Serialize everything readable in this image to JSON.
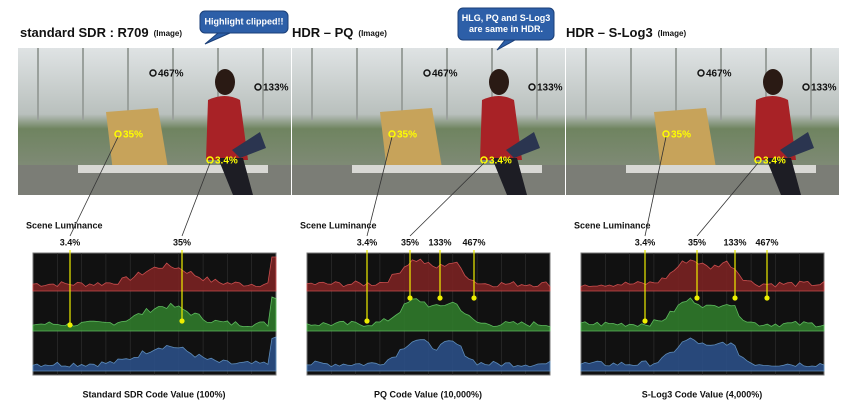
{
  "callouts": [
    {
      "lines": [
        "Highlight clipped!!"
      ]
    },
    {
      "lines": [
        "HLG, PQ and S-Log3",
        "are same in HDR."
      ]
    }
  ],
  "panels": [
    {
      "title": "standard SDR : R709",
      "title_note": "(Image)",
      "image_labels": [
        "467%",
        "133%",
        "35%",
        "3.4%"
      ],
      "scene_label": "Scene Luminance",
      "marker_labels": [
        "3.4%",
        "35%"
      ],
      "caption": "Standard  SDR Code Value (100%)"
    },
    {
      "title": "HDR – PQ",
      "title_note": "(Image)",
      "image_labels": [
        "467%",
        "133%",
        "35%",
        "3.4%"
      ],
      "scene_label": "Scene Luminance",
      "marker_labels": [
        "3.4%",
        "35%",
        "133%",
        "467%"
      ],
      "caption": "PQ Code Value (10,000%)"
    },
    {
      "title": "HDR – S-Log3",
      "title_note": "(Image)",
      "image_labels": [
        "467%",
        "133%",
        "35%",
        "3.4%"
      ],
      "scene_label": "Scene Luminance",
      "marker_labels": [
        "3.4%",
        "35%",
        "133%",
        "467%"
      ],
      "caption": "S-Log3 Code Value (4,000%)"
    }
  ]
}
